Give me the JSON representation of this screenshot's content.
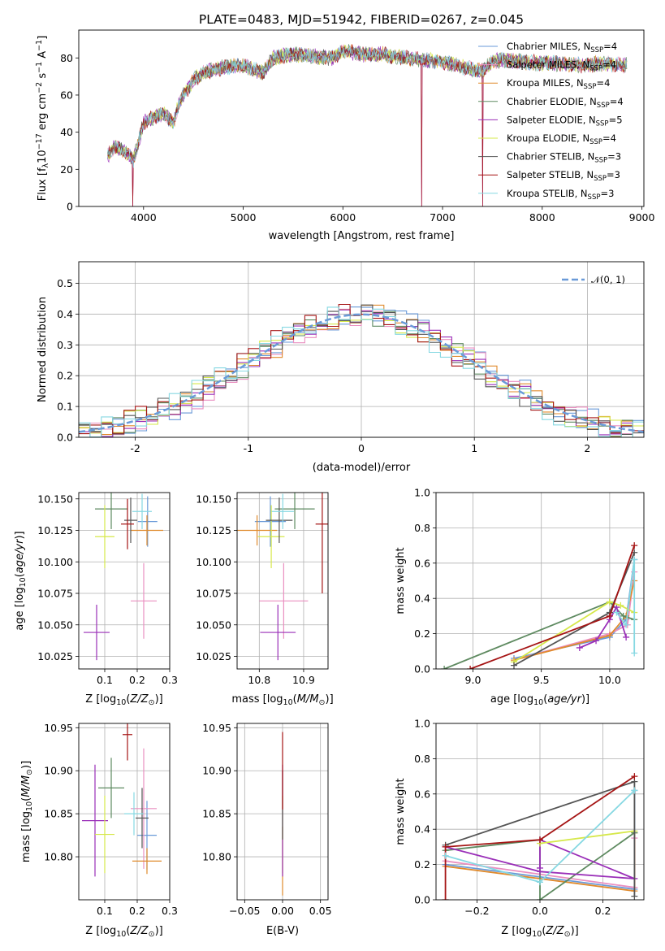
{
  "figure_title": "PLATE=0483, MJD=51942, FIBERID=0267, z=0.045",
  "colors": {
    "Chabrier MILES": "#6a9ad8",
    "Salpeter MILES": "#ea8fc0",
    "Kroupa MILES": "#e08a2c",
    "Chabrier ELODIE": "#5e8a60",
    "Salpeter ELODIE": "#9a2fb8",
    "Kroupa ELODIE": "#d6e84a",
    "Chabrier STELIB": "#545454",
    "Salpeter STELIB": "#a51414",
    "Kroupa STELIB": "#86d8e2"
  },
  "chart_data": [
    {
      "id": "spectrum",
      "type": "line",
      "xlabel": "wavelength [Angstrom, rest frame]",
      "ylabel": "Flux [f_λ 10^-17 erg cm^-2 s^-1 A^-1]",
      "xlim": [
        3350,
        9020
      ],
      "ylim": [
        0,
        95
      ],
      "xticks": [
        4000,
        5000,
        6000,
        7000,
        8000,
        9000
      ],
      "yticks": [
        0,
        20,
        40,
        60,
        80
      ],
      "legend_position": "top-right",
      "legend": [
        {
          "prefix": "Chabrier MILES, N",
          "sub": "SSP",
          "suffix": "=4"
        },
        {
          "prefix": "Salpeter MILES, N",
          "sub": "SSP",
          "suffix": "=4"
        },
        {
          "prefix": "Kroupa MILES, N",
          "sub": "SSP",
          "suffix": "=4"
        },
        {
          "prefix": "Chabrier ELODIE, N",
          "sub": "SSP",
          "suffix": "=4"
        },
        {
          "prefix": "Salpeter ELODIE, N",
          "sub": "SSP",
          "suffix": "=5"
        },
        {
          "prefix": "Kroupa ELODIE, N",
          "sub": "SSP",
          "suffix": "=4"
        },
        {
          "prefix": "Chabrier STELIB, N",
          "sub": "SSP",
          "suffix": "=3"
        },
        {
          "prefix": "Salpeter STELIB, N",
          "sub": "SSP",
          "suffix": "=3"
        },
        {
          "prefix": "Kroupa STELIB, N",
          "sub": "SSP",
          "suffix": "=3"
        }
      ],
      "continuum": [
        [
          3650,
          28
        ],
        [
          3700,
          32
        ],
        [
          3800,
          30
        ],
        [
          3900,
          25
        ],
        [
          3950,
          35
        ],
        [
          4000,
          45
        ],
        [
          4100,
          48
        ],
        [
          4200,
          50
        ],
        [
          4300,
          45
        ],
        [
          4350,
          55
        ],
        [
          4400,
          60
        ],
        [
          4500,
          68
        ],
        [
          4600,
          72
        ],
        [
          4800,
          75
        ],
        [
          5000,
          76
        ],
        [
          5100,
          74
        ],
        [
          5200,
          72
        ],
        [
          5300,
          80
        ],
        [
          5500,
          82
        ],
        [
          5700,
          81
        ],
        [
          5900,
          80
        ],
        [
          6000,
          84
        ],
        [
          6200,
          82
        ],
        [
          6400,
          82
        ],
        [
          6600,
          80
        ],
        [
          6800,
          79
        ],
        [
          7000,
          78
        ],
        [
          7200,
          75
        ],
        [
          7400,
          73
        ],
        [
          7500,
          78
        ],
        [
          7600,
          79
        ],
        [
          7800,
          78
        ],
        [
          8000,
          77
        ],
        [
          8200,
          77
        ],
        [
          8400,
          76
        ],
        [
          8600,
          77
        ],
        [
          8800,
          76
        ]
      ],
      "dips": [
        [
          3890,
          0
        ],
        [
          6790,
          0
        ],
        [
          7400,
          0
        ]
      ],
      "grid": false
    },
    {
      "id": "residual-histogram",
      "type": "histogram",
      "xlabel": "(data-model)/error",
      "ylabel": "Normed distribution",
      "xlim": [
        -2.5,
        2.5
      ],
      "ylim": [
        0,
        0.57
      ],
      "xticks": [
        -2,
        -1,
        0,
        1,
        2
      ],
      "yticks": [
        0.0,
        0.1,
        0.2,
        0.3,
        0.4,
        0.5
      ],
      "bin_width": 0.1,
      "reference_curve": {
        "name": "𝒩(0, 1)",
        "mean": 0,
        "std": 1
      },
      "legend_position": "top-right",
      "grid": true
    },
    {
      "id": "age-vs-Z",
      "type": "scatter",
      "xlabel": "Z [log10(Z/Z⊙)]",
      "ylabel": "age [log10(age/yr)]",
      "xlim": [
        0.02,
        0.3
      ],
      "ylim": [
        10.015,
        10.155
      ],
      "xticks": [
        0.1,
        0.2,
        0.3
      ],
      "yticks": [
        10.025,
        10.05,
        10.075,
        10.1,
        10.125,
        10.15
      ],
      "points": [
        {
          "s": "Chabrier MILES",
          "x": 0.232,
          "y": 10.132,
          "xe": 0.03,
          "ye": 0.02
        },
        {
          "s": "Salpeter MILES",
          "x": 0.22,
          "y": 10.069,
          "xe": 0.04,
          "ye": 0.03
        },
        {
          "s": "Kroupa MILES",
          "x": 0.23,
          "y": 10.125,
          "xe": 0.05,
          "ye": 0.012
        },
        {
          "s": "Chabrier ELODIE",
          "x": 0.12,
          "y": 10.142,
          "xe": 0.05,
          "ye": 0.016
        },
        {
          "s": "Salpeter ELODIE",
          "x": 0.075,
          "y": 10.044,
          "xe": 0.04,
          "ye": 0.022
        },
        {
          "s": "Kroupa ELODIE",
          "x": 0.1,
          "y": 10.12,
          "xe": 0.03,
          "ye": 0.025
        },
        {
          "s": "Chabrier STELIB",
          "x": 0.18,
          "y": 10.133,
          "xe": 0.02,
          "ye": 0.018
        },
        {
          "s": "Salpeter STELIB",
          "x": 0.17,
          "y": 10.13,
          "xe": 0.02,
          "ye": 0.02
        },
        {
          "s": "Kroupa STELIB",
          "x": 0.215,
          "y": 10.14,
          "xe": 0.03,
          "ye": 0.014
        }
      ],
      "grid": true
    },
    {
      "id": "age-vs-mass",
      "type": "scatter",
      "xlabel": "mass [log10(M/M⊙)]",
      "ylabel": "",
      "xlim": [
        10.75,
        10.955
      ],
      "ylim": [
        10.015,
        10.155
      ],
      "xticks": [
        10.8,
        10.9
      ],
      "yticks": [
        10.025,
        10.05,
        10.075,
        10.1,
        10.125,
        10.15
      ],
      "points": [
        {
          "s": "Chabrier MILES",
          "x": 10.825,
          "y": 10.132,
          "xe": 0.035,
          "ye": 0.02
        },
        {
          "s": "Salpeter MILES",
          "x": 10.855,
          "y": 10.069,
          "xe": 0.055,
          "ye": 0.03
        },
        {
          "s": "Kroupa MILES",
          "x": 10.795,
          "y": 10.125,
          "xe": 0.045,
          "ye": 0.012
        },
        {
          "s": "Chabrier ELODIE",
          "x": 10.88,
          "y": 10.142,
          "xe": 0.045,
          "ye": 0.016
        },
        {
          "s": "Salpeter ELODIE",
          "x": 10.842,
          "y": 10.044,
          "xe": 0.04,
          "ye": 0.022
        },
        {
          "s": "Kroupa ELODIE",
          "x": 10.827,
          "y": 10.12,
          "xe": 0.03,
          "ye": 0.025
        },
        {
          "s": "Chabrier STELIB",
          "x": 10.845,
          "y": 10.133,
          "xe": 0.03,
          "ye": 0.018
        },
        {
          "s": "Salpeter STELIB",
          "x": 10.942,
          "y": 10.13,
          "xe": 0.015,
          "ye": 0.055
        },
        {
          "s": "Kroupa STELIB",
          "x": 10.853,
          "y": 10.14,
          "xe": 0.025,
          "ye": 0.014
        }
      ],
      "grid": true
    },
    {
      "id": "weight-vs-age",
      "type": "line",
      "xlabel": "age [log10(age/yr)]",
      "ylabel": "mass weight",
      "xlim": [
        8.73,
        10.25
      ],
      "ylim": [
        0,
        1
      ],
      "xticks": [
        9.0,
        9.5,
        10.0
      ],
      "yticks": [
        0.0,
        0.2,
        0.4,
        0.6,
        0.8,
        1.0
      ],
      "series": [
        {
          "s": "Chabrier MILES",
          "pts": [
            [
              9.3,
              0.06
            ],
            [
              10.0,
              0.18
            ],
            [
              10.12,
              0.28
            ],
            [
              10.18,
              0.62
            ]
          ]
        },
        {
          "s": "Salpeter MILES",
          "pts": [
            [
              9.3,
              0.05
            ],
            [
              10.0,
              0.2
            ],
            [
              10.13,
              0.25
            ],
            [
              10.18,
              0.55
            ]
          ]
        },
        {
          "s": "Kroupa MILES",
          "pts": [
            [
              9.3,
              0.05
            ],
            [
              10.0,
              0.19
            ],
            [
              10.12,
              0.3
            ],
            [
              10.18,
              0.5
            ]
          ]
        },
        {
          "s": "Chabrier ELODIE",
          "pts": [
            [
              8.79,
              0.0
            ],
            [
              10.0,
              0.38
            ],
            [
              10.1,
              0.3
            ],
            [
              10.18,
              0.28
            ]
          ]
        },
        {
          "s": "Salpeter ELODIE",
          "pts": [
            [
              9.78,
              0.12
            ],
            [
              9.9,
              0.16
            ],
            [
              10.0,
              0.28
            ],
            [
              10.05,
              0.35
            ],
            [
              10.12,
              0.18
            ]
          ]
        },
        {
          "s": "Kroupa ELODIE",
          "pts": [
            [
              9.3,
              0.04
            ],
            [
              10.0,
              0.38
            ],
            [
              10.08,
              0.36
            ],
            [
              10.18,
              0.32
            ]
          ]
        },
        {
          "s": "Chabrier STELIB",
          "pts": [
            [
              9.3,
              0.02
            ],
            [
              10.0,
              0.32
            ],
            [
              10.18,
              0.66
            ]
          ]
        },
        {
          "s": "Salpeter STELIB",
          "pts": [
            [
              8.98,
              0.0
            ],
            [
              10.0,
              0.3
            ],
            [
              10.18,
              0.7
            ]
          ]
        },
        {
          "s": "Kroupa STELIB",
          "pts": [
            [
              10.05,
              0.32
            ],
            [
              10.12,
              0.25
            ],
            [
              10.18,
              0.62
            ],
            [
              10.18,
              0.09
            ]
          ]
        }
      ],
      "grid": true
    },
    {
      "id": "mass-vs-Z",
      "type": "scatter",
      "xlabel": "Z [log10(Z/Z⊙)]",
      "ylabel": "mass [log10(M/M⊙)]",
      "xlim": [
        0.02,
        0.3
      ],
      "ylim": [
        10.75,
        10.955
      ],
      "xticks": [
        0.1,
        0.2,
        0.3
      ],
      "yticks": [
        10.8,
        10.85,
        10.9,
        10.95
      ],
      "points": [
        {
          "s": "Chabrier MILES",
          "x": 0.23,
          "y": 10.825,
          "xe": 0.03,
          "ye": 0.04
        },
        {
          "s": "Salpeter MILES",
          "x": 0.22,
          "y": 10.856,
          "xe": 0.04,
          "ye": 0.07
        },
        {
          "s": "Kroupa MILES",
          "x": 0.23,
          "y": 10.795,
          "xe": 0.045,
          "ye": 0.015
        },
        {
          "s": "Chabrier ELODIE",
          "x": 0.12,
          "y": 10.88,
          "xe": 0.04,
          "ye": 0.035
        },
        {
          "s": "Salpeter ELODIE",
          "x": 0.07,
          "y": 10.842,
          "xe": 0.04,
          "ye": 0.065
        },
        {
          "s": "Kroupa ELODIE",
          "x": 0.1,
          "y": 10.826,
          "xe": 0.03,
          "ye": 0.045
        },
        {
          "s": "Chabrier STELIB",
          "x": 0.215,
          "y": 10.845,
          "xe": 0.02,
          "ye": 0.035
        },
        {
          "s": "Salpeter STELIB",
          "x": 0.17,
          "y": 10.942,
          "xe": 0.015,
          "ye": 0.03
        },
        {
          "s": "Kroupa STELIB",
          "x": 0.19,
          "y": 10.85,
          "xe": 0.03,
          "ye": 0.025
        }
      ],
      "grid": true
    },
    {
      "id": "mass-vs-EBV",
      "type": "scatter",
      "xlabel": "E(B-V)",
      "ylabel": "",
      "xlim": [
        -0.06,
        0.06
      ],
      "ylim": [
        10.75,
        10.955
      ],
      "xticks": [
        -0.05,
        0.0,
        0.05
      ],
      "yticks": [
        10.8,
        10.85,
        10.9,
        10.95
      ],
      "points": [
        {
          "s": "Kroupa MILES",
          "x": 0.0,
          "y": 10.795,
          "xe": 0.0,
          "ye": 0.04
        },
        {
          "s": "Kroupa ELODIE",
          "x": 0.0,
          "y": 10.826,
          "xe": 0.0,
          "ye": 0.045
        },
        {
          "s": "Salpeter ELODIE",
          "x": 0.0,
          "y": 10.842,
          "xe": 0.0,
          "ye": 0.065
        },
        {
          "s": "Chabrier STELIB",
          "x": 0.0,
          "y": 10.86,
          "xe": 0.0,
          "ye": 0.04
        },
        {
          "s": "Salpeter STELIB",
          "x": 0.0,
          "y": 10.9,
          "xe": 0.0,
          "ye": 0.045
        }
      ],
      "grid": true
    },
    {
      "id": "weight-vs-Z",
      "type": "line",
      "xlabel": "Z [log10(Z/Z⊙)]",
      "ylabel": "mass weight",
      "xlim": [
        -0.33,
        0.33
      ],
      "ylim": [
        0,
        1
      ],
      "xticks": [
        -0.2,
        0.0,
        0.2
      ],
      "yticks": [
        0.0,
        0.2,
        0.4,
        0.6,
        0.8,
        1.0
      ],
      "series": [
        {
          "s": "Chabrier MILES",
          "pts": [
            [
              -0.3,
              0.2
            ],
            [
              0.3,
              0.06
            ],
            [
              0.3,
              0.62
            ]
          ]
        },
        {
          "s": "Salpeter MILES",
          "pts": [
            [
              -0.3,
              0.22
            ],
            [
              0.3,
              0.07
            ],
            [
              0.3,
              0.35
            ]
          ]
        },
        {
          "s": "Kroupa MILES",
          "pts": [
            [
              -0.3,
              0.19
            ],
            [
              0.3,
              0.05
            ],
            [
              0.3,
              0.38
            ]
          ]
        },
        {
          "s": "Chabrier ELODIE",
          "pts": [
            [
              -0.3,
              0.28
            ],
            [
              0.0,
              0.34
            ],
            [
              0.0,
              0.0
            ],
            [
              0.3,
              0.38
            ]
          ]
        },
        {
          "s": "Salpeter ELODIE",
          "pts": [
            [
              -0.3,
              0.3
            ],
            [
              0.0,
              0.16
            ],
            [
              0.3,
              0.12
            ],
            [
              0.0,
              0.34
            ],
            [
              0.0,
              0.18
            ]
          ]
        },
        {
          "s": "Kroupa ELODIE",
          "pts": [
            [
              0.0,
              0.32
            ],
            [
              0.3,
              0.39
            ]
          ]
        },
        {
          "s": "Chabrier STELIB",
          "pts": [
            [
              -0.3,
              0.31
            ],
            [
              0.3,
              0.67
            ],
            [
              0.3,
              0.02
            ]
          ]
        },
        {
          "s": "Salpeter STELIB",
          "pts": [
            [
              -0.3,
              0.0
            ],
            [
              -0.3,
              0.3
            ],
            [
              0.0,
              0.34
            ],
            [
              0.3,
              0.7
            ]
          ]
        },
        {
          "s": "Kroupa STELIB",
          "pts": [
            [
              -0.3,
              0.25
            ],
            [
              0.0,
              0.1
            ],
            [
              0.3,
              0.62
            ]
          ]
        }
      ],
      "grid": true
    }
  ]
}
